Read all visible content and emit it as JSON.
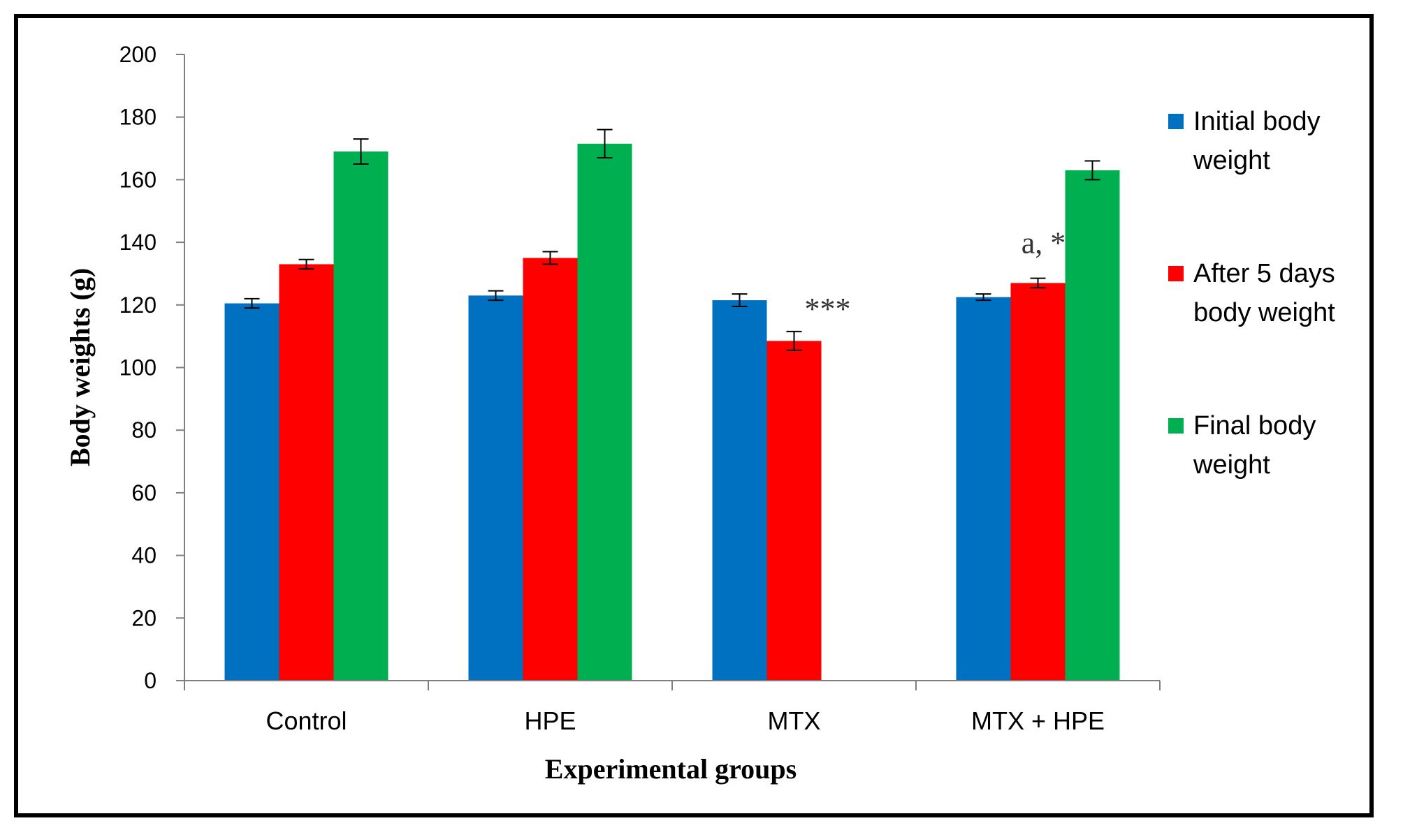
{
  "chart_data": {
    "type": "bar",
    "title": "",
    "xlabel": "Experimental groups",
    "ylabel": "Body weights (g)",
    "ylim": [
      0,
      200
    ],
    "yticks": [
      0,
      20,
      40,
      60,
      80,
      100,
      120,
      140,
      160,
      180,
      200
    ],
    "categories": [
      "Control",
      "HPE",
      "MTX",
      "MTX + HPE"
    ],
    "series": [
      {
        "name": "Initial body weight",
        "legend_lines": [
          "Initial body",
          "weight"
        ],
        "color": "#0070C0",
        "values": [
          120.5,
          123,
          121.5,
          122.5
        ],
        "errors": [
          1.5,
          1.5,
          2,
          1
        ]
      },
      {
        "name": "After 5 days body weight",
        "legend_lines": [
          "After 5 days",
          "body weight"
        ],
        "color": "#FF0000",
        "values": [
          133,
          135,
          108.5,
          127
        ],
        "errors": [
          1.5,
          2,
          3,
          1.5
        ]
      },
      {
        "name": "Final body weight",
        "legend_lines": [
          "Final body",
          "weight"
        ],
        "color": "#00B050",
        "values": [
          169,
          171.5,
          null,
          163
        ],
        "errors": [
          4,
          4.5,
          null,
          3
        ]
      }
    ],
    "annotations": [
      {
        "text": "***",
        "category": 2,
        "series": 1
      },
      {
        "text": "a, *",
        "category": 3,
        "series": 1
      }
    ],
    "legend": "right",
    "grid": false
  }
}
